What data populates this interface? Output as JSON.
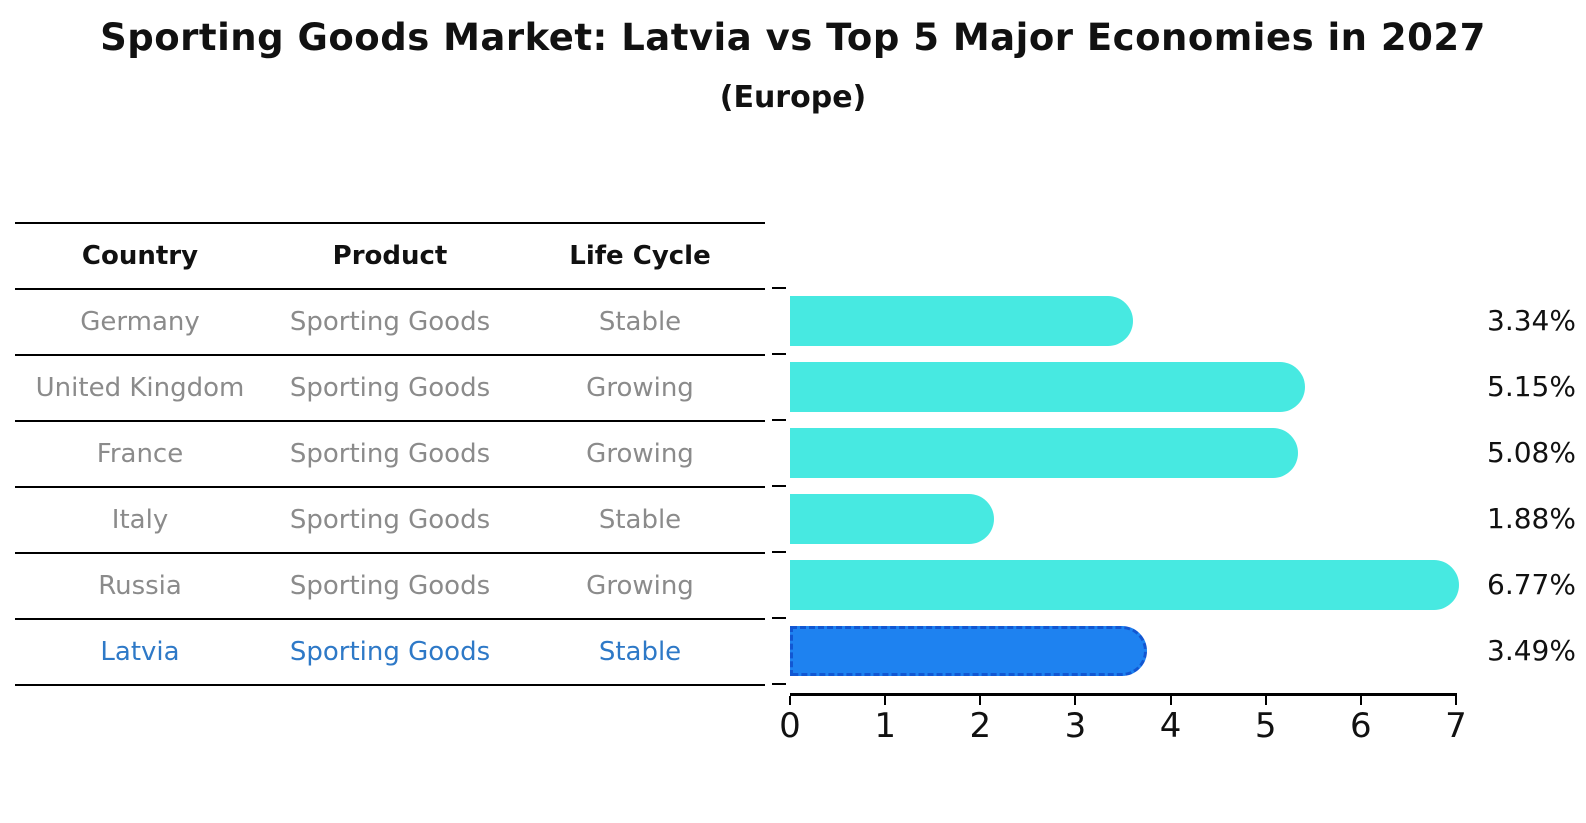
{
  "title": "Sporting Goods Market: Latvia vs Top 5 Major Economies in 2027",
  "subtitle": "(Europe)",
  "table": {
    "headers": [
      "Country",
      "Product",
      "Life Cycle"
    ],
    "rows": [
      {
        "country": "Germany",
        "product": "Sporting Goods",
        "life_cycle": "Stable",
        "highlight": false
      },
      {
        "country": "United Kingdom",
        "product": "Sporting Goods",
        "life_cycle": "Growing",
        "highlight": false
      },
      {
        "country": "France",
        "product": "Sporting Goods",
        "life_cycle": "Growing",
        "highlight": false
      },
      {
        "country": "Italy",
        "product": "Sporting Goods",
        "life_cycle": "Stable",
        "highlight": false
      },
      {
        "country": "Russia",
        "product": "Sporting Goods",
        "life_cycle": "Growing",
        "highlight": false
      },
      {
        "country": "Latvia",
        "product": "Sporting Goods",
        "life_cycle": "Stable",
        "highlight": true
      }
    ]
  },
  "chart_data": {
    "type": "bar",
    "orientation": "horizontal",
    "title": "Sporting Goods Market: Latvia vs Top 5 Major Economies in 2027 (Europe)",
    "categories": [
      "Germany",
      "United Kingdom",
      "France",
      "Italy",
      "Russia",
      "Latvia"
    ],
    "values": [
      3.34,
      5.15,
      5.08,
      1.88,
      6.77,
      3.49
    ],
    "bar_labels": [
      "3.34%",
      "5.15%",
      "5.08%",
      "1.88%",
      "6.77%",
      "3.49%"
    ],
    "xlabel": "",
    "ylabel": "",
    "xlim": [
      0,
      7
    ],
    "x_ticks": [
      0,
      1,
      2,
      3,
      4,
      5,
      6,
      7
    ],
    "grid": false,
    "legend": false,
    "highlight_index": 5,
    "bar_color": "#47e9e1",
    "highlight_bar_color": "#1e82f0",
    "highlight_border_color": "#1257d2",
    "highlight_text_color": "#2e79c7",
    "table_text_color": "#8b8b8b"
  }
}
